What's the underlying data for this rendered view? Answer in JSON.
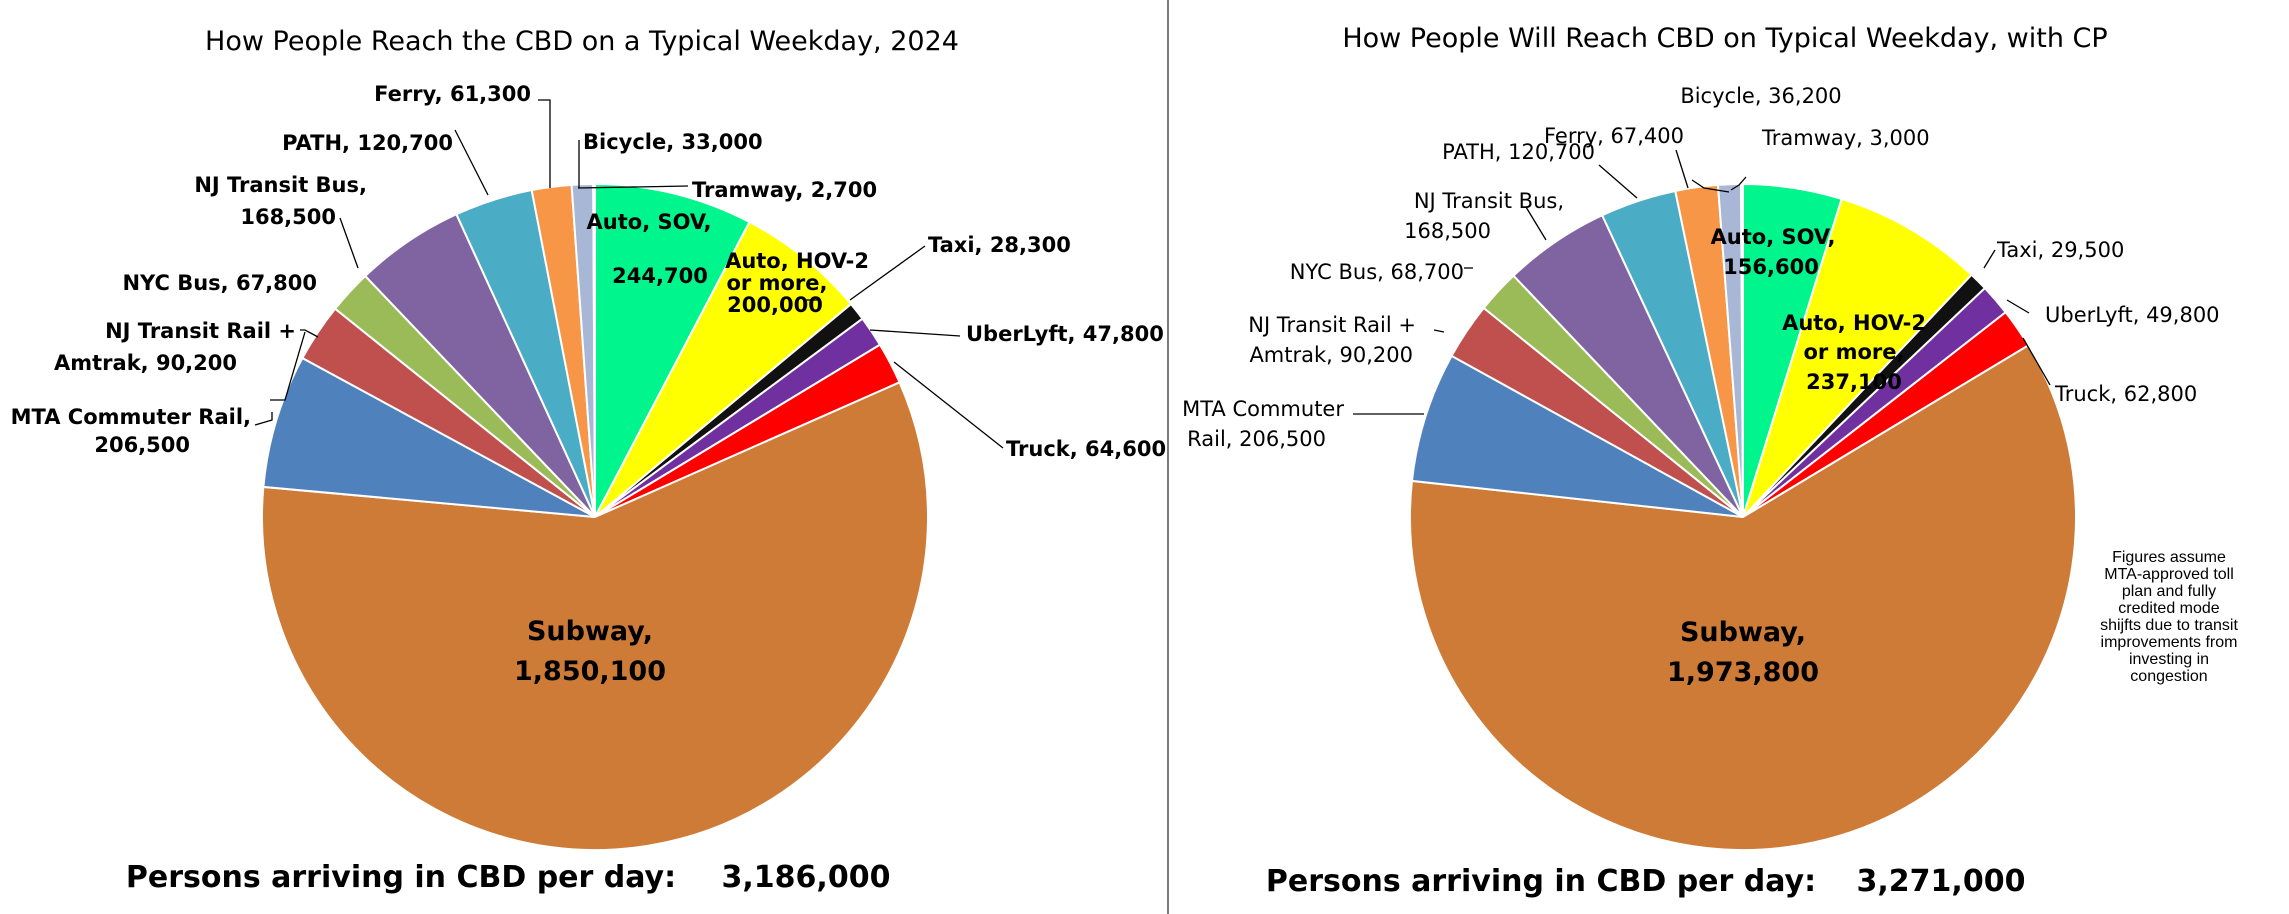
{
  "chart_data": [
    {
      "type": "pie",
      "title": "How People Reach the CBD on a Typical Weekday, 2024",
      "slices": [
        {
          "label": "Auto, SOV",
          "value": 244700,
          "value_text": "244,700",
          "color": "#00F58C"
        },
        {
          "label": "Auto, HOV-2 or more",
          "value": 200000,
          "value_text": "200,000",
          "color": "#FFFF00"
        },
        {
          "label": "Taxi",
          "value": 28300,
          "value_text": "28,300",
          "color": "#111111"
        },
        {
          "label": "UberLyft",
          "value": 47800,
          "value_text": "47,800",
          "color": "#7030A0"
        },
        {
          "label": "Truck",
          "value": 64600,
          "value_text": "64,600",
          "color": "#FF0000"
        },
        {
          "label": "Subway",
          "value": 1850100,
          "value_text": "1,850,100",
          "color": "#CD7B36"
        },
        {
          "label": "MTA Commuter Rail",
          "value": 206500,
          "value_text": "206,500",
          "color": "#4F81BD"
        },
        {
          "label": "NJ Transit Rail + Amtrak",
          "value": 90200,
          "value_text": "90,200",
          "color": "#C0504D"
        },
        {
          "label": "NYC Bus",
          "value": 67800,
          "value_text": "67,800",
          "color": "#9BBB59"
        },
        {
          "label": "NJ Transit Bus",
          "value": 168500,
          "value_text": "168,500",
          "color": "#8064A2"
        },
        {
          "label": "PATH",
          "value": 120700,
          "value_text": "120,700",
          "color": "#4BACC6"
        },
        {
          "label": "Ferry",
          "value": 61300,
          "value_text": "61,300",
          "color": "#F79646"
        },
        {
          "label": "Bicycle",
          "value": 33000,
          "value_text": "33,000",
          "color": "#A9B7D6"
        },
        {
          "label": "Tramway",
          "value": 2700,
          "value_text": "2,700",
          "color": "#1F3864"
        }
      ],
      "slice_labels": {
        "sov": "Auto, SOV,",
        "sov_val": "244,700",
        "hov1": "Auto, HOV-2",
        "hov2": "or more,",
        "hov3": "200,000",
        "taxi": "Taxi, 28,300",
        "uber": "UberLyft, 47,800",
        "truck": "Truck, 64,600",
        "subway1": "Subway,",
        "subway2": "1,850,100",
        "mta1": "MTA Commuter Rail,",
        "mta2": "206,500",
        "njrail1": "NJ Transit Rail +",
        "njrail2": "Amtrak, 90,200",
        "nycbus": "NYC Bus, 67,800",
        "njbus1": "NJ Transit Bus,",
        "njbus2": "168,500",
        "path": "PATH, 120,700",
        "ferry": "Ferry, 61,300",
        "bicycle": "Bicycle, 33,000",
        "tramway": "Tramway, 2,700"
      },
      "total_caption": "Persons arriving in CBD per day:",
      "total_value": "3,186,000"
    },
    {
      "type": "pie",
      "title": "How People Will Reach CBD on Typical Weekday, with CP",
      "slices": [
        {
          "label": "Auto, SOV",
          "value": 156600,
          "value_text": "156,600",
          "color": "#00F58C"
        },
        {
          "label": "Auto, HOV-2 or more",
          "value": 237100,
          "value_text": "237,100",
          "color": "#FFFF00"
        },
        {
          "label": "Taxi",
          "value": 29500,
          "value_text": "29,500",
          "color": "#111111"
        },
        {
          "label": "UberLyft",
          "value": 49800,
          "value_text": "49,800",
          "color": "#7030A0"
        },
        {
          "label": "Truck",
          "value": 62800,
          "value_text": "62,800",
          "color": "#FF0000"
        },
        {
          "label": "Subway",
          "value": 1973800,
          "value_text": "1,973,800",
          "color": "#CD7B36"
        },
        {
          "label": "MTA Commuter Rail",
          "value": 206500,
          "value_text": "206,500",
          "color": "#4F81BD"
        },
        {
          "label": "NJ Transit Rail + Amtrak",
          "value": 90200,
          "value_text": "90,200",
          "color": "#C0504D"
        },
        {
          "label": "NYC Bus",
          "value": 68700,
          "value_text": "68,700",
          "color": "#9BBB59"
        },
        {
          "label": "NJ Transit Bus",
          "value": 168500,
          "value_text": "168,500",
          "color": "#8064A2"
        },
        {
          "label": "PATH",
          "value": 120700,
          "value_text": "120,700",
          "color": "#4BACC6"
        },
        {
          "label": "Ferry",
          "value": 67400,
          "value_text": "67,400",
          "color": "#F79646"
        },
        {
          "label": "Bicycle",
          "value": 36200,
          "value_text": "36,200",
          "color": "#A9B7D6"
        },
        {
          "label": "Tramway",
          "value": 3000,
          "value_text": "3,000",
          "color": "#1F3864"
        }
      ],
      "slice_labels": {
        "sov": "Auto, SOV,",
        "sov_val": "156,600",
        "hov1": "Auto, HOV-2",
        "hov2": "or more,",
        "hov3": "237,100",
        "taxi": "Taxi, 29,500",
        "uber": "UberLyft, 49,800",
        "truck": "Truck, 62,800",
        "subway1": "Subway,",
        "subway2": "1,973,800",
        "mta1": "MTA Commuter",
        "mta2": "Rail, 206,500",
        "njrail1": "NJ Transit Rail +",
        "njrail2": "Amtrak, 90,200",
        "nycbus": "NYC Bus, 68,700",
        "njbus1": "NJ Transit Bus,",
        "njbus2": "168,500",
        "path": "PATH, 120,700",
        "ferry": "Ferry, 67,400",
        "bicycle": "Bicycle, 36,200",
        "tramway": "Tramway, 3,000"
      },
      "total_caption": "Persons arriving in CBD per day:",
      "total_value": "3,271,000",
      "note": [
        "Figures assume",
        "MTA-approved toll",
        "plan and fully",
        "credited mode",
        "shijfts due to transit",
        "improvements from",
        "investing in",
        "congestion"
      ]
    }
  ]
}
